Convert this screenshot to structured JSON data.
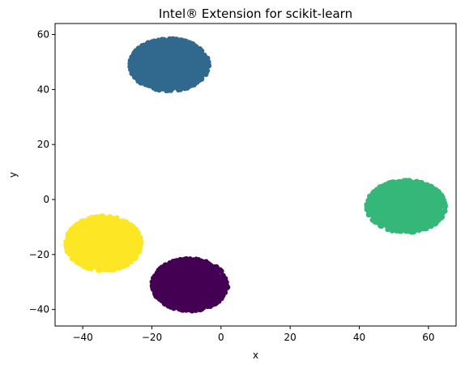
{
  "chart_data": {
    "type": "scatter",
    "title": "Intel® Extension for scikit-learn",
    "xlabel": "x",
    "ylabel": "y",
    "xlim": [
      -48,
      68
    ],
    "ylim": [
      -46,
      64
    ],
    "xticks": [
      -40,
      -20,
      0,
      20,
      40,
      60
    ],
    "yticks": [
      -40,
      -20,
      0,
      20,
      40,
      60
    ],
    "grid": false,
    "legend": "none",
    "clusters": [
      {
        "label": 0,
        "color": "#440154",
        "center": [
          -9,
          -31
        ],
        "radius": [
          11,
          9.5
        ]
      },
      {
        "label": 1,
        "color": "#31688e",
        "center": [
          -15,
          49
        ],
        "radius": [
          11.5,
          9.5
        ]
      },
      {
        "label": 2,
        "color": "#35b779",
        "center": [
          53.5,
          -2.5
        ],
        "radius": [
          11.5,
          9.5
        ]
      },
      {
        "label": 3,
        "color": "#fde725",
        "center": [
          -34,
          -16
        ],
        "radius": [
          11,
          10
        ]
      }
    ]
  }
}
